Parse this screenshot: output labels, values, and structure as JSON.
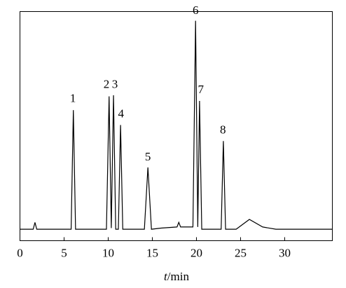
{
  "chart_data": {
    "type": "line",
    "x_label_var": "t",
    "x_label_unit": "/min",
    "x": [
      0,
      1.5,
      1.7,
      1.9,
      5.8,
      6.05,
      6.3,
      9.8,
      10.1,
      10.35,
      10.6,
      10.85,
      11.15,
      11.4,
      11.65,
      14.1,
      14.5,
      14.9,
      16,
      17.8,
      18,
      18.2,
      19.6,
      19.9,
      20.15,
      20.35,
      20.6,
      22.8,
      23.05,
      23.3,
      24.5,
      26,
      27.5,
      29,
      35.4
    ],
    "values": [
      0,
      0,
      3,
      0,
      0,
      52,
      0,
      0,
      58,
      0.5,
      58.5,
      0,
      0,
      45.5,
      0,
      0,
      27,
      0,
      0.5,
      1,
      3,
      1,
      1,
      91,
      1,
      56,
      0,
      0,
      38.5,
      0,
      0,
      4.3,
      1,
      0,
      0
    ],
    "color": "#000000",
    "xlim": [
      0,
      35.4
    ],
    "ylim": [
      -5,
      95
    ],
    "xticks": [
      0,
      5,
      10,
      15,
      20,
      25,
      30
    ],
    "annotations": [
      {
        "text": "1",
        "x": 6.0,
        "y": 55.5
      },
      {
        "text": "2",
        "x": 9.8,
        "y": 61.6
      },
      {
        "text": "3",
        "x": 10.75,
        "y": 61.6
      },
      {
        "text": "4",
        "x": 11.45,
        "y": 48.8
      },
      {
        "text": "5",
        "x": 14.5,
        "y": 30
      },
      {
        "text": "6",
        "x": 19.9,
        "y": 94
      },
      {
        "text": "7",
        "x": 20.5,
        "y": 59.4
      },
      {
        "text": "8",
        "x": 23.0,
        "y": 41.8
      }
    ]
  }
}
